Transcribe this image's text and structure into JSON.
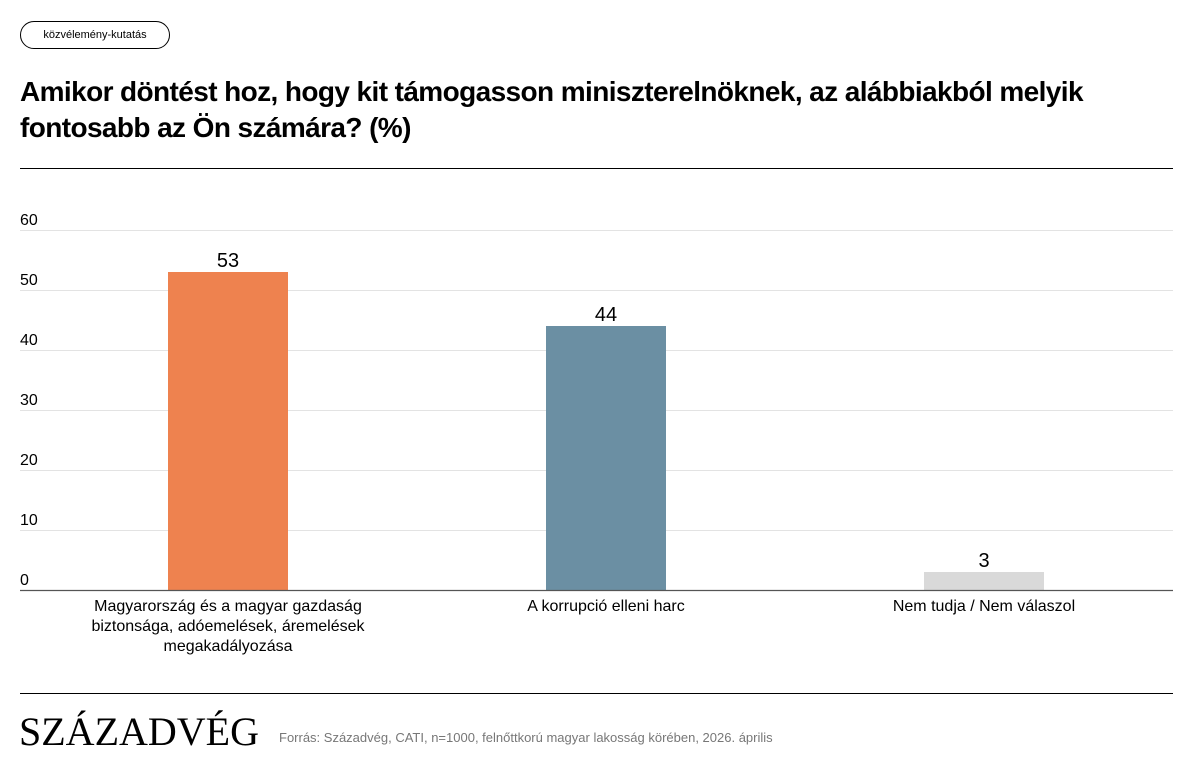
{
  "header": {
    "tag": "közvélemény-kutatás",
    "title": "Amikor döntést hoz, hogy kit támogasson miniszterelnöknek, az alábbiakból melyik fontosabb az Ön számára? (%)"
  },
  "chart_data": {
    "type": "bar",
    "categories": [
      "Magyarország és a magyar gazdaság biztonsága, adóemelések, áremelések megakadályozása",
      "A korrupció elleni harc",
      "Nem tudja / Nem válaszol"
    ],
    "values": [
      53,
      44,
      3
    ],
    "colors": [
      "#ee824f",
      "#6b8fa3",
      "#d9d9d9"
    ],
    "ylim": [
      0,
      60
    ],
    "yticks": [
      "0",
      "10",
      "20",
      "30",
      "40",
      "50",
      "60"
    ],
    "grid": true,
    "data_labels": true
  },
  "footer": {
    "logo": "SZÁZADVÉG",
    "source": "Forrás: Századvég, CATI, n=1000, felnőttkorú magyar lakosság körében, 2026. április"
  }
}
